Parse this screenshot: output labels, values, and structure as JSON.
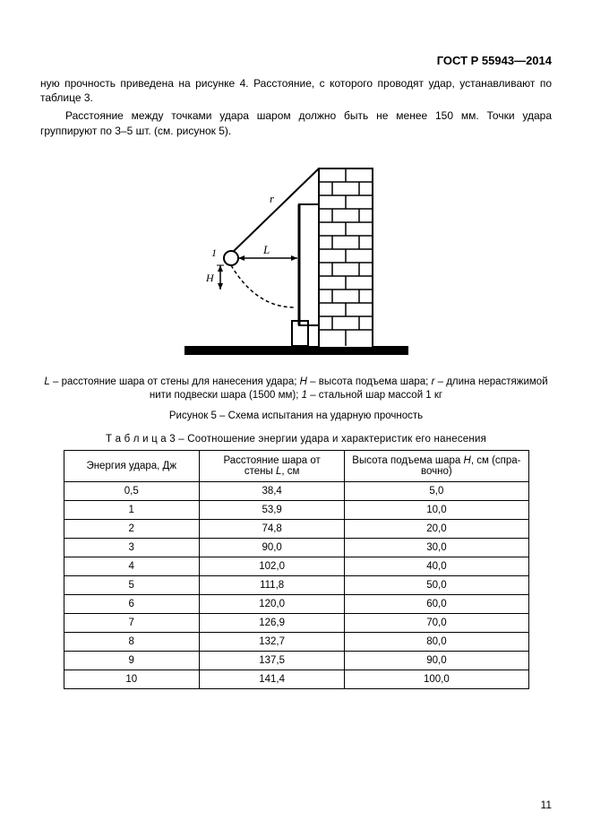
{
  "header": {
    "standard": "ГОСТ Р 55943—2014"
  },
  "paragraphs": {
    "p1": "ную прочность приведена на рисунке 4. Расстояние, с которого проводят удар, устанавливают по таблице 3.",
    "p2": "Расстояние между точками удара шаром должно быть не менее 150 мм. Точки удара группируют по 3–5 шт. (см. рисунок 5)."
  },
  "figure": {
    "labels": {
      "r": "r",
      "L": "L",
      "H": "H",
      "one": "1"
    },
    "legend_prefix": "L",
    "legend_L": " – расстояние шара от стены для нанесения удара;  ",
    "legend_Hprefix": "H",
    "legend_H": " – высота подъема шара; ",
    "legend_rprefix": "r",
    "legend_r": " – длина нерастяжимой нити подвески шара (1500 мм); ",
    "legend_1prefix": "1",
    "legend_1": " – стальной шар массой 1 кг",
    "caption": "Рисунок 5 – Схема испытания на ударную прочность"
  },
  "table": {
    "caption_prefix": "Т а б л и ц а 3",
    "caption_rest": " – Соотношение энергии удара и характеристик его нанесения",
    "columns": {
      "c1": "Энергия удара, Дж",
      "c2_l1": "Расстояние шара от",
      "c2_l2_a": "стены ",
      "c2_l2_b": "L",
      "c2_l2_c": ", см",
      "c3_l1_a": "Высота подъема шара ",
      "c3_l1_b": "H",
      "c3_l1_c": ", см (спра-",
      "c3_l2": "вочно)"
    },
    "rows": [
      {
        "e": "0,5",
        "l": "38,4",
        "h": "5,0"
      },
      {
        "e": "1",
        "l": "53,9",
        "h": "10,0"
      },
      {
        "e": "2",
        "l": "74,8",
        "h": "20,0"
      },
      {
        "e": "3",
        "l": "90,0",
        "h": "30,0"
      },
      {
        "e": "4",
        "l": "102,0",
        "h": "40,0"
      },
      {
        "e": "5",
        "l": "111,8",
        "h": "50,0"
      },
      {
        "e": "6",
        "l": "120,0",
        "h": "60,0"
      },
      {
        "e": "7",
        "l": "126,9",
        "h": "70,0"
      },
      {
        "e": "8",
        "l": "132,7",
        "h": "80,0"
      },
      {
        "e": "9",
        "l": "137,5",
        "h": "90,0"
      },
      {
        "e": "10",
        "l": "141,4",
        "h": "100,0"
      }
    ]
  },
  "page_number": "11"
}
